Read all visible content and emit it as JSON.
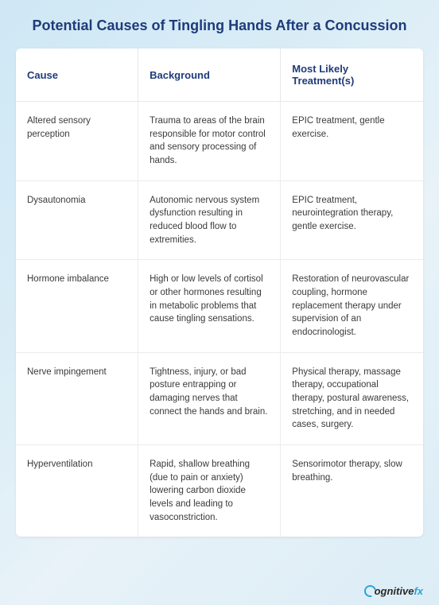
{
  "title": "Potential Causes of Tingling Hands After a Concussion",
  "columns": [
    "Cause",
    "Background",
    "Most Likely Treatment(s)"
  ],
  "rows": [
    {
      "cause": "Altered sensory perception",
      "background": "Trauma to areas of the brain responsible for motor control and sensory processing of hands.",
      "treatment": "EPIC treatment, gentle exercise."
    },
    {
      "cause": "Dysautonomia",
      "background": "Autonomic nervous system dysfunction resulting in reduced blood flow to extremities.",
      "treatment": "EPIC treatment, neurointegration therapy, gentle exercise."
    },
    {
      "cause": "Hormone imbalance",
      "background": "High or low levels of cortisol or other hormones resulting in metabolic problems that cause tingling sensations.",
      "treatment": "Restoration of neurovascular coupling, hormone replacement therapy under supervision of an endocrinologist."
    },
    {
      "cause": "Nerve impingement",
      "background": "Tightness, injury, or bad posture entrapping or damaging nerves that connect the hands and brain.",
      "treatment": "Physical therapy, massage therapy, occupational therapy, postural awareness, stretching, and in needed cases, surgery."
    },
    {
      "cause": "Hyperventilation",
      "background": "Rapid, shallow breathing (due to pain or anxiety) lowering carbon dioxide levels and leading to vasoconstriction.",
      "treatment": "Sensorimotor therapy, slow breathing."
    }
  ],
  "brand": {
    "name": "ognitive",
    "suffix": "fx"
  }
}
